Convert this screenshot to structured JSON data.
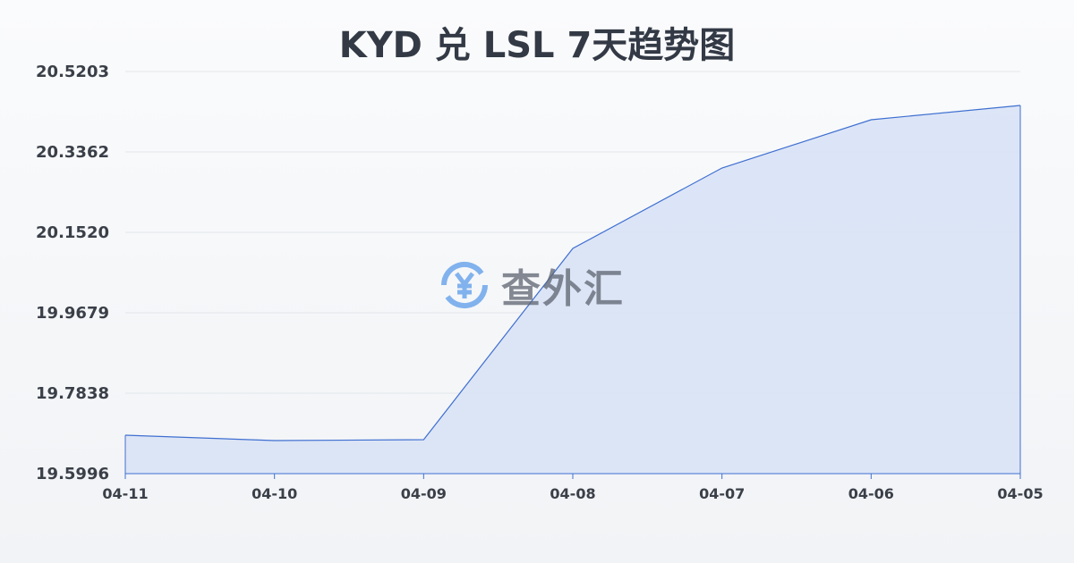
{
  "chart_data": {
    "type": "area",
    "title": "KYD 兑 LSL 7天趋势图",
    "categories": [
      "04-11",
      "04-10",
      "04-09",
      "04-08",
      "04-07",
      "04-06",
      "04-05"
    ],
    "values": [
      19.6876,
      19.6753,
      19.6773,
      20.1152,
      20.2993,
      20.4098,
      20.4426
    ],
    "yticks": [
      "20.5203",
      "20.3362",
      "20.1520",
      "19.9679",
      "19.7838",
      "19.5996"
    ],
    "ylim": [
      19.5996,
      20.5203
    ],
    "grid": true,
    "colors": {
      "line": "#3f6fd1",
      "fill": "#d7e2f6"
    }
  },
  "watermark": {
    "text": "查外汇",
    "icon": "yen-exchange-icon"
  }
}
